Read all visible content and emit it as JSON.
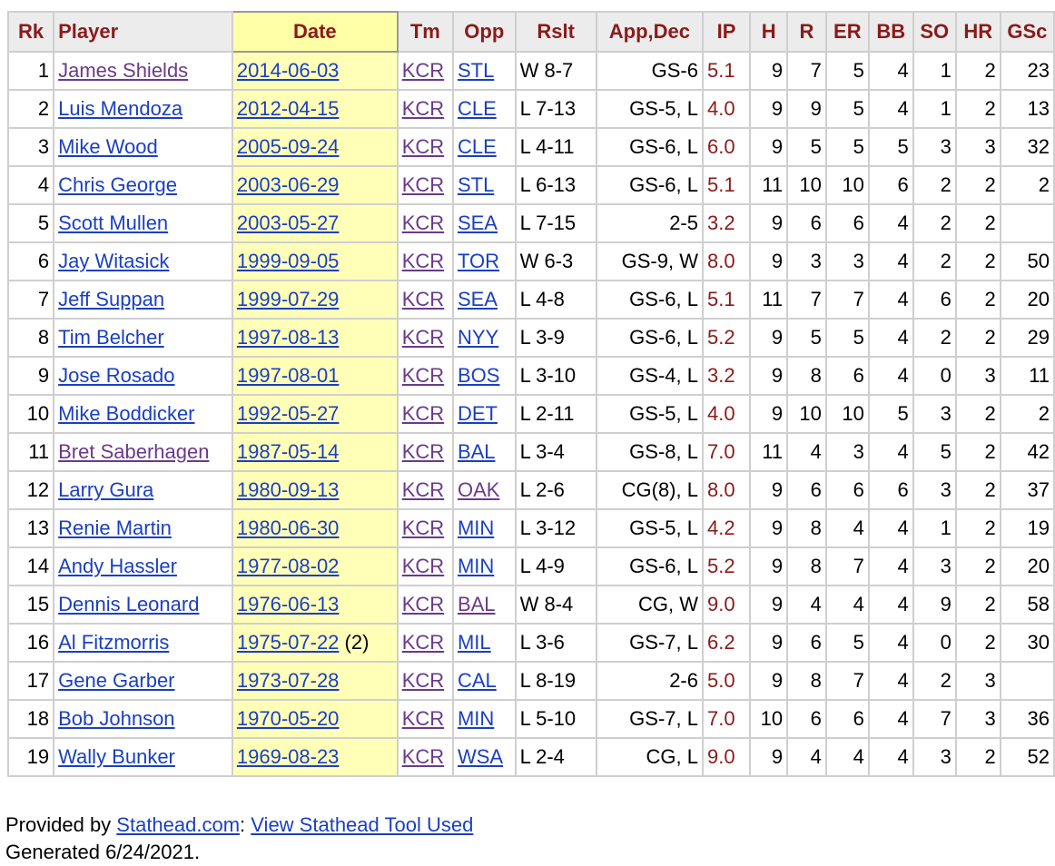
{
  "headers": [
    "Rk",
    "Player",
    "Date",
    "Tm",
    "Opp",
    "Rslt",
    "App,Dec",
    "IP",
    "H",
    "R",
    "ER",
    "BB",
    "SO",
    "HR",
    "GSc"
  ],
  "rows": [
    {
      "rk": "1",
      "player": "James Shields",
      "player_visited": true,
      "date": "2014-06-03",
      "date_suffix": "",
      "tm": "KCR",
      "opp": "STL",
      "opp_visited": false,
      "rslt": "W 8-7",
      "app": "GS-6",
      "ip": "5.1",
      "h": "9",
      "r": "7",
      "er": "5",
      "bb": "4",
      "so": "1",
      "hr": "2",
      "gsc": "23"
    },
    {
      "rk": "2",
      "player": "Luis Mendoza",
      "player_visited": false,
      "date": "2012-04-15",
      "date_suffix": "",
      "tm": "KCR",
      "opp": "CLE",
      "opp_visited": false,
      "rslt": "L 7-13",
      "app": "GS-5, L",
      "ip": "4.0",
      "h": "9",
      "r": "9",
      "er": "5",
      "bb": "4",
      "so": "1",
      "hr": "2",
      "gsc": "13"
    },
    {
      "rk": "3",
      "player": "Mike Wood",
      "player_visited": false,
      "date": "2005-09-24",
      "date_suffix": "",
      "tm": "KCR",
      "opp": "CLE",
      "opp_visited": false,
      "rslt": "L 4-11",
      "app": "GS-6, L",
      "ip": "6.0",
      "h": "9",
      "r": "5",
      "er": "5",
      "bb": "5",
      "so": "3",
      "hr": "3",
      "gsc": "32"
    },
    {
      "rk": "4",
      "player": "Chris George",
      "player_visited": false,
      "date": "2003-06-29",
      "date_suffix": "",
      "tm": "KCR",
      "opp": "STL",
      "opp_visited": false,
      "rslt": "L 6-13",
      "app": "GS-6, L",
      "ip": "5.1",
      "h": "11",
      "r": "10",
      "er": "10",
      "bb": "6",
      "so": "2",
      "hr": "2",
      "gsc": "2"
    },
    {
      "rk": "5",
      "player": "Scott Mullen",
      "player_visited": false,
      "date": "2003-05-27",
      "date_suffix": "",
      "tm": "KCR",
      "opp": "SEA",
      "opp_visited": false,
      "rslt": "L 7-15",
      "app": "2-5",
      "ip": "3.2",
      "h": "9",
      "r": "6",
      "er": "6",
      "bb": "4",
      "so": "2",
      "hr": "2",
      "gsc": ""
    },
    {
      "rk": "6",
      "player": "Jay Witasick",
      "player_visited": false,
      "date": "1999-09-05",
      "date_suffix": "",
      "tm": "KCR",
      "opp": "TOR",
      "opp_visited": false,
      "rslt": "W 6-3",
      "app": "GS-9, W",
      "ip": "8.0",
      "h": "9",
      "r": "3",
      "er": "3",
      "bb": "4",
      "so": "2",
      "hr": "2",
      "gsc": "50"
    },
    {
      "rk": "7",
      "player": "Jeff Suppan",
      "player_visited": false,
      "date": "1999-07-29",
      "date_suffix": "",
      "tm": "KCR",
      "opp": "SEA",
      "opp_visited": false,
      "rslt": "L 4-8",
      "app": "GS-6, L",
      "ip": "5.1",
      "h": "11",
      "r": "7",
      "er": "7",
      "bb": "4",
      "so": "6",
      "hr": "2",
      "gsc": "20"
    },
    {
      "rk": "8",
      "player": "Tim Belcher",
      "player_visited": false,
      "date": "1997-08-13",
      "date_suffix": "",
      "tm": "KCR",
      "opp": "NYY",
      "opp_visited": false,
      "rslt": "L 3-9",
      "app": "GS-6, L",
      "ip": "5.2",
      "h": "9",
      "r": "5",
      "er": "5",
      "bb": "4",
      "so": "2",
      "hr": "2",
      "gsc": "29"
    },
    {
      "rk": "9",
      "player": "Jose Rosado",
      "player_visited": false,
      "date": "1997-08-01",
      "date_suffix": "",
      "tm": "KCR",
      "opp": "BOS",
      "opp_visited": false,
      "rslt": "L 3-10",
      "app": "GS-4, L",
      "ip": "3.2",
      "h": "9",
      "r": "8",
      "er": "6",
      "bb": "4",
      "so": "0",
      "hr": "3",
      "gsc": "11"
    },
    {
      "rk": "10",
      "player": "Mike Boddicker",
      "player_visited": false,
      "date": "1992-05-27",
      "date_suffix": "",
      "tm": "KCR",
      "opp": "DET",
      "opp_visited": false,
      "rslt": "L 2-11",
      "app": "GS-5, L",
      "ip": "4.0",
      "h": "9",
      "r": "10",
      "er": "10",
      "bb": "5",
      "so": "3",
      "hr": "2",
      "gsc": "2"
    },
    {
      "rk": "11",
      "player": "Bret Saberhagen",
      "player_visited": true,
      "date": "1987-05-14",
      "date_suffix": "",
      "tm": "KCR",
      "opp": "BAL",
      "opp_visited": false,
      "rslt": "L 3-4",
      "app": "GS-8, L",
      "ip": "7.0",
      "h": "11",
      "r": "4",
      "er": "3",
      "bb": "4",
      "so": "5",
      "hr": "2",
      "gsc": "42"
    },
    {
      "rk": "12",
      "player": "Larry Gura",
      "player_visited": false,
      "date": "1980-09-13",
      "date_suffix": "",
      "tm": "KCR",
      "opp": "OAK",
      "opp_visited": true,
      "rslt": "L 2-6",
      "app": "CG(8), L",
      "ip": "8.0",
      "h": "9",
      "r": "6",
      "er": "6",
      "bb": "6",
      "so": "3",
      "hr": "2",
      "gsc": "37"
    },
    {
      "rk": "13",
      "player": "Renie Martin",
      "player_visited": false,
      "date": "1980-06-30",
      "date_suffix": "",
      "tm": "KCR",
      "opp": "MIN",
      "opp_visited": false,
      "rslt": "L 3-12",
      "app": "GS-5, L",
      "ip": "4.2",
      "h": "9",
      "r": "8",
      "er": "4",
      "bb": "4",
      "so": "1",
      "hr": "2",
      "gsc": "19"
    },
    {
      "rk": "14",
      "player": "Andy Hassler",
      "player_visited": false,
      "date": "1977-08-02",
      "date_suffix": "",
      "tm": "KCR",
      "opp": "MIN",
      "opp_visited": false,
      "rslt": "L 4-9",
      "app": "GS-6, L",
      "ip": "5.2",
      "h": "9",
      "r": "8",
      "er": "7",
      "bb": "4",
      "so": "3",
      "hr": "2",
      "gsc": "20"
    },
    {
      "rk": "15",
      "player": "Dennis Leonard",
      "player_visited": false,
      "date": "1976-06-13",
      "date_suffix": "",
      "tm": "KCR",
      "opp": "BAL",
      "opp_visited": true,
      "rslt": "W 8-4",
      "app": "CG, W",
      "ip": "9.0",
      "h": "9",
      "r": "4",
      "er": "4",
      "bb": "4",
      "so": "9",
      "hr": "2",
      "gsc": "58"
    },
    {
      "rk": "16",
      "player": "Al Fitzmorris",
      "player_visited": false,
      "date": "1975-07-22",
      "date_suffix": " (2)",
      "tm": "KCR",
      "opp": "MIL",
      "opp_visited": false,
      "rslt": "L 3-6",
      "app": "GS-7, L",
      "ip": "6.2",
      "h": "9",
      "r": "6",
      "er": "5",
      "bb": "4",
      "so": "0",
      "hr": "2",
      "gsc": "30"
    },
    {
      "rk": "17",
      "player": "Gene Garber",
      "player_visited": false,
      "date": "1973-07-28",
      "date_suffix": "",
      "tm": "KCR",
      "opp": "CAL",
      "opp_visited": false,
      "rslt": "L 8-19",
      "app": "2-6",
      "ip": "5.0",
      "h": "9",
      "r": "8",
      "er": "7",
      "bb": "4",
      "so": "2",
      "hr": "3",
      "gsc": ""
    },
    {
      "rk": "18",
      "player": "Bob Johnson",
      "player_visited": false,
      "date": "1970-05-20",
      "date_suffix": "",
      "tm": "KCR",
      "opp": "MIN",
      "opp_visited": false,
      "rslt": "L 5-10",
      "app": "GS-7, L",
      "ip": "7.0",
      "h": "10",
      "r": "6",
      "er": "6",
      "bb": "4",
      "so": "7",
      "hr": "3",
      "gsc": "36"
    },
    {
      "rk": "19",
      "player": "Wally Bunker",
      "player_visited": false,
      "date": "1969-08-23",
      "date_suffix": "",
      "tm": "KCR",
      "opp": "WSA",
      "opp_visited": false,
      "rslt": "L 2-4",
      "app": "CG, L",
      "ip": "9.0",
      "h": "9",
      "r": "4",
      "er": "4",
      "bb": "4",
      "so": "3",
      "hr": "2",
      "gsc": "52"
    }
  ],
  "footer": {
    "provided_prefix": "Provided by ",
    "stathead_link": "Stathead.com",
    "separator": ": ",
    "tool_link": "View Stathead Tool Used",
    "generated": "Generated 6/24/2021."
  },
  "colors": {
    "header_text": "#8b1a1a",
    "link": "#1a3fc4",
    "visited_link": "#6a3a8a",
    "date_highlight": "#ffffb8"
  }
}
